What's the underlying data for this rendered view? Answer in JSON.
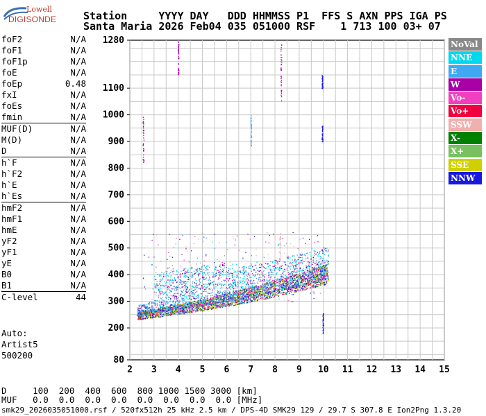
{
  "logo": {
    "top": "Lowell",
    "main": "DIGISONDE"
  },
  "header": {
    "line1": "Station     YYYY DAY   DDD HHMMSS P1  FFS S AXN PPS IGA PS",
    "line2": "Santa Maria 2026 Feb04 035 051000 RSF    1 713 100 03+ 07"
  },
  "params": {
    "groups": [
      [
        {
          "k": "foF2",
          "v": "N/A"
        },
        {
          "k": "foF1",
          "v": "N/A"
        },
        {
          "k": "foF1p",
          "v": "N/A"
        },
        {
          "k": "foE",
          "v": "N/A"
        },
        {
          "k": "foEp",
          "v": "0.48"
        },
        {
          "k": "fxI",
          "v": "N/A"
        },
        {
          "k": "foEs",
          "v": "N/A"
        },
        {
          "k": "fmin",
          "v": "N/A"
        }
      ],
      [
        {
          "k": "MUF(D)",
          "v": "N/A"
        },
        {
          "k": "M(D)",
          "v": "N/A"
        },
        {
          "k": "D",
          "v": "N/A"
        }
      ],
      [
        {
          "k": "h`F",
          "v": "N/A"
        },
        {
          "k": "h`F2",
          "v": "N/A"
        },
        {
          "k": "h`E",
          "v": "N/A"
        },
        {
          "k": "h`Es",
          "v": "N/A"
        }
      ],
      [
        {
          "k": "hmF2",
          "v": "N/A"
        },
        {
          "k": "hmF1",
          "v": "N/A"
        },
        {
          "k": "hmE",
          "v": "N/A"
        },
        {
          "k": "yF2",
          "v": "N/A"
        },
        {
          "k": "yF1",
          "v": "N/A"
        },
        {
          "k": "yE",
          "v": "N/A"
        },
        {
          "k": "B0",
          "v": "N/A"
        },
        {
          "k": "B1",
          "v": "N/A"
        }
      ],
      [
        {
          "k": "C-level",
          "v": "44"
        }
      ]
    ]
  },
  "auto": {
    "line1": "Auto:",
    "line2": "Artist5",
    "line3": "500200"
  },
  "plot": {
    "x_ticks": [
      "2",
      "3",
      "4",
      "5",
      "6",
      "7",
      "8",
      "9",
      "10",
      "11",
      "12",
      "13",
      "14",
      "15"
    ],
    "y_ticks": [
      {
        "v": 1280,
        "label": "1280"
      },
      {
        "v": 1100,
        "label": "1100"
      },
      {
        "v": 1000,
        "label": "1000"
      },
      {
        "v": 900,
        "label": "900"
      },
      {
        "v": 800,
        "label": "800"
      },
      {
        "v": 700,
        "label": "700"
      },
      {
        "v": 600,
        "label": "600"
      },
      {
        "v": 500,
        "label": "500"
      },
      {
        "v": 400,
        "label": "400"
      },
      {
        "v": 300,
        "label": "300"
      },
      {
        "v": 200,
        "label": "200"
      },
      {
        "v": 80,
        "label": "80"
      }
    ],
    "x_range": [
      2,
      15
    ],
    "y_range": [
      80,
      1280
    ]
  },
  "legend": [
    {
      "label": "NoVal",
      "color": "#888888"
    },
    {
      "label": "NNE",
      "color": "#00d8f0"
    },
    {
      "label": "E",
      "color": "#40a8f0"
    },
    {
      "label": "W",
      "color": "#a800a8"
    },
    {
      "label": "Vo-",
      "color": "#f040c0"
    },
    {
      "label": "Vo+",
      "color": "#f00040"
    },
    {
      "label": "SSW",
      "color": "#f0b0b0"
    },
    {
      "label": "X-",
      "color": "#008000"
    },
    {
      "label": "X+",
      "color": "#78c060"
    },
    {
      "label": "SSE",
      "color": "#d0d000"
    },
    {
      "label": "NNW",
      "color": "#1818e0"
    }
  ],
  "bottom": {
    "d_row": "D     100  200  400  600  800 1000 1500 3000 [km]",
    "muf_row": "MUF   0.0  0.0  0.0  0.0  0.0  0.0  0.0  0.0 [MHz]",
    "footer": "smk29_2026035051000.rsf / 520fx512h 25 kHz 2.5 km / DPS-4D SMK29 129 / 29.7 S 307.8 E Ion2Png 1.3.20"
  }
}
